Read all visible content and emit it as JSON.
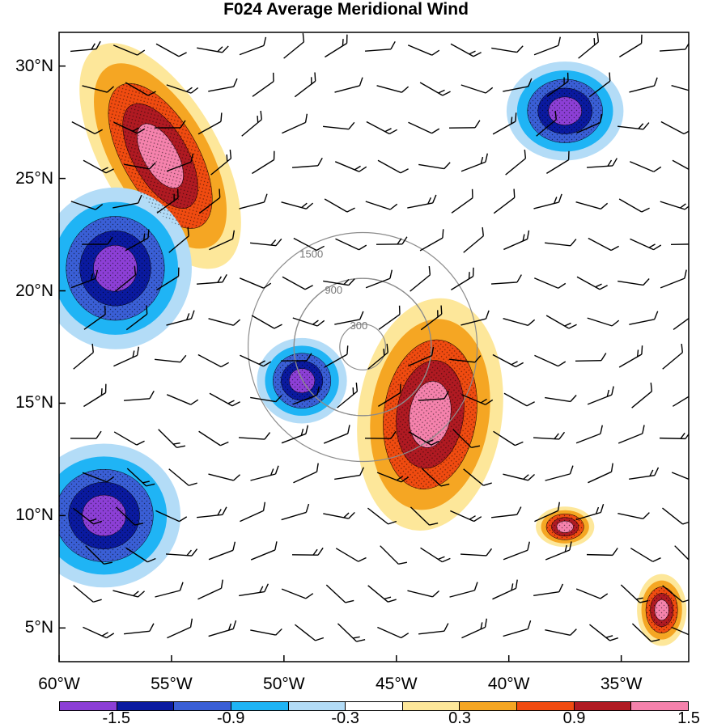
{
  "title": "F024 Average Meridional Wind",
  "latitude_labels": [
    "30°N",
    "25°N",
    "20°N",
    "15°N",
    "10°N",
    "5°N"
  ],
  "longitude_labels": [
    "60°W",
    "55°W",
    "50°W",
    "45°W",
    "40°W",
    "35°W"
  ],
  "range_ring_labels": [
    "300",
    "900",
    "1500"
  ],
  "colorbar": {
    "tick_labels": [
      "-1.5",
      "-0.9",
      "-0.3",
      "0.3",
      "0.9",
      "1.5"
    ],
    "colors": [
      "#8c3fd6",
      "#0a1aa0",
      "#3a5fd6",
      "#1fb4f5",
      "#b3dcf7",
      "#ffffff",
      "#fde79a",
      "#f5a623",
      "#f04b10",
      "#b01a22",
      "#f582ac"
    ]
  },
  "chart_data": {
    "type": "heatmap",
    "title": "F024 Average Meridional Wind",
    "xlim": [
      -60,
      -32
    ],
    "ylim": [
      3.5,
      31.5
    ],
    "x_ticks": [
      -60,
      -55,
      -50,
      -45,
      -40,
      -35
    ],
    "y_ticks": [
      30,
      25,
      20,
      15,
      10,
      5
    ],
    "contour_levels": [
      -1.5,
      -1.2,
      -0.9,
      -0.6,
      -0.3,
      0.3,
      0.6,
      0.9,
      1.2,
      1.5
    ],
    "range_rings": [
      300,
      900,
      1500
    ],
    "storm_center": [
      -46.5,
      17.5
    ],
    "features": [
      {
        "sign": "positive",
        "peak": 1.8,
        "lon": -43.5,
        "lat": 14.5
      },
      {
        "sign": "positive",
        "peak": 1.8,
        "lon": -55.5,
        "lat": 26.0
      },
      {
        "sign": "negative",
        "peak": -1.8,
        "lon": -57.5,
        "lat": 21.0
      },
      {
        "sign": "negative",
        "peak": -1.7,
        "lon": -49.2,
        "lat": 16.0
      },
      {
        "sign": "negative",
        "peak": -1.7,
        "lon": -37.5,
        "lat": 28.0
      },
      {
        "sign": "negative",
        "peak": -1.8,
        "lon": -58.0,
        "lat": 10.0
      },
      {
        "sign": "positive",
        "peak": 1.7,
        "lon": -33.2,
        "lat": 5.8
      },
      {
        "sign": "positive",
        "peak": 1.6,
        "lon": -37.5,
        "lat": 9.5
      }
    ]
  }
}
